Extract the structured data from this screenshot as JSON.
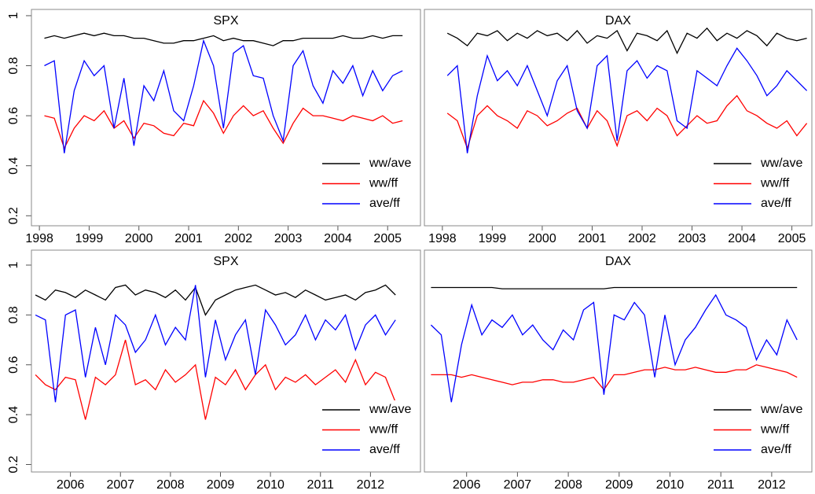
{
  "chart_data": [
    {
      "type": "line",
      "title": "SPX",
      "legend": "bottom-right",
      "xlim": [
        1997.84,
        2005.66
      ],
      "ylim": [
        0.16,
        1.025
      ],
      "xticks": [
        1998,
        1999,
        2000,
        2001,
        2002,
        2003,
        2004,
        2005
      ],
      "yticks": [
        0.2,
        0.4,
        0.6,
        0.8,
        1.0
      ],
      "x": [
        1998.1,
        1998.3,
        1998.5,
        1998.7,
        1998.9,
        1999.1,
        1999.3,
        1999.5,
        1999.7,
        1999.9,
        2000.1,
        2000.3,
        2000.5,
        2000.7,
        2000.9,
        2001.1,
        2001.3,
        2001.5,
        2001.7,
        2001.9,
        2002.1,
        2002.3,
        2002.5,
        2002.7,
        2002.9,
        2003.1,
        2003.3,
        2003.5,
        2003.7,
        2003.9,
        2004.1,
        2004.3,
        2004.5,
        2004.7,
        2004.9,
        2005.1,
        2005.3
      ],
      "series": [
        {
          "name": "ww/ave",
          "color": "#000000",
          "values": [
            0.91,
            0.92,
            0.91,
            0.92,
            0.93,
            0.92,
            0.93,
            0.92,
            0.92,
            0.91,
            0.91,
            0.9,
            0.89,
            0.89,
            0.9,
            0.9,
            0.91,
            0.92,
            0.9,
            0.91,
            0.9,
            0.9,
            0.89,
            0.88,
            0.9,
            0.9,
            0.91,
            0.91,
            0.91,
            0.91,
            0.92,
            0.91,
            0.91,
            0.92,
            0.91,
            0.92,
            0.92
          ]
        },
        {
          "name": "ww/ff",
          "color": "#ff0000",
          "values": [
            0.6,
            0.59,
            0.47,
            0.55,
            0.6,
            0.58,
            0.62,
            0.55,
            0.58,
            0.51,
            0.57,
            0.56,
            0.53,
            0.52,
            0.57,
            0.56,
            0.66,
            0.61,
            0.53,
            0.6,
            0.64,
            0.6,
            0.62,
            0.55,
            0.49,
            0.57,
            0.63,
            0.6,
            0.6,
            0.59,
            0.58,
            0.6,
            0.59,
            0.58,
            0.6,
            0.57,
            0.58
          ]
        },
        {
          "name": "ave/ff",
          "color": "#0000ff",
          "values": [
            0.8,
            0.82,
            0.45,
            0.7,
            0.82,
            0.76,
            0.8,
            0.55,
            0.75,
            0.48,
            0.72,
            0.66,
            0.78,
            0.62,
            0.58,
            0.72,
            0.9,
            0.8,
            0.55,
            0.85,
            0.88,
            0.76,
            0.75,
            0.6,
            0.5,
            0.8,
            0.86,
            0.72,
            0.65,
            0.78,
            0.73,
            0.8,
            0.68,
            0.78,
            0.7,
            0.76,
            0.78
          ]
        }
      ]
    },
    {
      "type": "line",
      "title": "DAX",
      "legend": "bottom-right",
      "xlim": [
        1997.64,
        2005.4
      ],
      "ylim": [
        0.16,
        1.025
      ],
      "xticks": [
        1998,
        1999,
        2000,
        2001,
        2002,
        2003,
        2004,
        2005
      ],
      "x": [
        1998.1,
        1998.3,
        1998.5,
        1998.7,
        1998.9,
        1999.1,
        1999.3,
        1999.5,
        1999.7,
        1999.9,
        2000.1,
        2000.3,
        2000.5,
        2000.7,
        2000.9,
        2001.1,
        2001.3,
        2001.5,
        2001.7,
        2001.9,
        2002.1,
        2002.3,
        2002.5,
        2002.7,
        2002.9,
        2003.1,
        2003.3,
        2003.5,
        2003.7,
        2003.9,
        2004.1,
        2004.3,
        2004.5,
        2004.7,
        2004.9,
        2005.1,
        2005.3
      ],
      "series": [
        {
          "name": "ww/ave",
          "color": "#000000",
          "values": [
            0.93,
            0.91,
            0.88,
            0.93,
            0.92,
            0.94,
            0.9,
            0.93,
            0.91,
            0.94,
            0.92,
            0.93,
            0.9,
            0.94,
            0.89,
            0.92,
            0.91,
            0.94,
            0.86,
            0.93,
            0.92,
            0.9,
            0.94,
            0.85,
            0.93,
            0.91,
            0.95,
            0.9,
            0.93,
            0.91,
            0.94,
            0.92,
            0.88,
            0.93,
            0.91,
            0.9,
            0.91
          ]
        },
        {
          "name": "ww/ff",
          "color": "#ff0000",
          "values": [
            0.61,
            0.58,
            0.47,
            0.6,
            0.64,
            0.6,
            0.58,
            0.55,
            0.62,
            0.6,
            0.56,
            0.58,
            0.61,
            0.63,
            0.55,
            0.62,
            0.58,
            0.48,
            0.6,
            0.62,
            0.58,
            0.63,
            0.6,
            0.52,
            0.56,
            0.6,
            0.57,
            0.58,
            0.64,
            0.68,
            0.62,
            0.6,
            0.57,
            0.55,
            0.58,
            0.52,
            0.57
          ]
        },
        {
          "name": "ave/ff",
          "color": "#0000ff",
          "values": [
            0.76,
            0.8,
            0.45,
            0.68,
            0.84,
            0.74,
            0.78,
            0.72,
            0.8,
            0.7,
            0.6,
            0.74,
            0.8,
            0.62,
            0.55,
            0.8,
            0.84,
            0.5,
            0.78,
            0.82,
            0.75,
            0.8,
            0.78,
            0.58,
            0.55,
            0.78,
            0.75,
            0.72,
            0.8,
            0.87,
            0.82,
            0.76,
            0.68,
            0.72,
            0.78,
            0.74,
            0.7
          ]
        }
      ]
    },
    {
      "type": "line",
      "title": "SPX",
      "legend": "bottom-right",
      "xlim": [
        2005.22,
        2013.0
      ],
      "ylim": [
        0.17,
        1.06
      ],
      "xticks": [
        2006,
        2007,
        2008,
        2009,
        2010,
        2011,
        2012
      ],
      "yticks": [
        0.2,
        0.4,
        0.6,
        0.8,
        1.0
      ],
      "x": [
        2005.3,
        2005.5,
        2005.7,
        2005.9,
        2006.1,
        2006.3,
        2006.5,
        2006.7,
        2006.9,
        2007.1,
        2007.3,
        2007.5,
        2007.7,
        2007.9,
        2008.1,
        2008.3,
        2008.5,
        2008.7,
        2008.9,
        2009.1,
        2009.3,
        2009.5,
        2009.7,
        2009.9,
        2010.1,
        2010.3,
        2010.5,
        2010.7,
        2010.9,
        2011.1,
        2011.3,
        2011.5,
        2011.7,
        2011.9,
        2012.1,
        2012.3,
        2012.5
      ],
      "series": [
        {
          "name": "ww/ave",
          "color": "#000000",
          "values": [
            0.88,
            0.86,
            0.9,
            0.89,
            0.87,
            0.9,
            0.88,
            0.86,
            0.91,
            0.92,
            0.88,
            0.9,
            0.89,
            0.87,
            0.9,
            0.86,
            0.91,
            0.8,
            0.86,
            0.88,
            0.9,
            0.91,
            0.92,
            0.9,
            0.88,
            0.89,
            0.87,
            0.9,
            0.88,
            0.86,
            0.87,
            0.88,
            0.86,
            0.89,
            0.9,
            0.92,
            0.88
          ]
        },
        {
          "name": "ww/ff",
          "color": "#ff0000",
          "values": [
            0.56,
            0.52,
            0.5,
            0.55,
            0.54,
            0.38,
            0.55,
            0.52,
            0.56,
            0.7,
            0.52,
            0.54,
            0.5,
            0.58,
            0.53,
            0.56,
            0.6,
            0.38,
            0.55,
            0.52,
            0.58,
            0.5,
            0.56,
            0.6,
            0.5,
            0.55,
            0.53,
            0.56,
            0.52,
            0.55,
            0.58,
            0.53,
            0.62,
            0.52,
            0.57,
            0.55,
            0.45
          ]
        },
        {
          "name": "ave/ff",
          "color": "#0000ff",
          "values": [
            0.8,
            0.78,
            0.45,
            0.8,
            0.82,
            0.55,
            0.75,
            0.6,
            0.8,
            0.76,
            0.65,
            0.7,
            0.8,
            0.68,
            0.75,
            0.7,
            0.92,
            0.55,
            0.78,
            0.62,
            0.72,
            0.78,
            0.56,
            0.82,
            0.76,
            0.68,
            0.72,
            0.8,
            0.7,
            0.78,
            0.74,
            0.8,
            0.66,
            0.76,
            0.8,
            0.72,
            0.78
          ]
        }
      ]
    },
    {
      "type": "line",
      "title": "DAX",
      "legend": "bottom-right",
      "xlim": [
        2005.17,
        2012.79
      ],
      "ylim": [
        0.17,
        1.06
      ],
      "xticks": [
        2006,
        2007,
        2008,
        2009,
        2010,
        2011,
        2012
      ],
      "x": [
        2005.3,
        2005.5,
        2005.7,
        2005.9,
        2006.1,
        2006.3,
        2006.5,
        2006.7,
        2006.9,
        2007.1,
        2007.3,
        2007.5,
        2007.7,
        2007.9,
        2008.1,
        2008.3,
        2008.5,
        2008.7,
        2008.9,
        2009.1,
        2009.3,
        2009.5,
        2009.7,
        2009.9,
        2010.1,
        2010.3,
        2010.5,
        2010.7,
        2010.9,
        2011.1,
        2011.3,
        2011.5,
        2011.7,
        2011.9,
        2012.1,
        2012.3,
        2012.5
      ],
      "series": [
        {
          "name": "ww/ave",
          "color": "#000000",
          "values": [
            0.91,
            0.91,
            0.91,
            0.91,
            0.91,
            0.91,
            0.91,
            0.905,
            0.905,
            0.905,
            0.905,
            0.905,
            0.905,
            0.905,
            0.905,
            0.905,
            0.905,
            0.905,
            0.91,
            0.91,
            0.91,
            0.91,
            0.91,
            0.91,
            0.91,
            0.91,
            0.91,
            0.91,
            0.91,
            0.91,
            0.91,
            0.91,
            0.91,
            0.91,
            0.91,
            0.91,
            0.91
          ]
        },
        {
          "name": "ww/ff",
          "color": "#ff0000",
          "values": [
            0.56,
            0.56,
            0.56,
            0.55,
            0.56,
            0.55,
            0.54,
            0.53,
            0.52,
            0.53,
            0.53,
            0.54,
            0.54,
            0.53,
            0.53,
            0.54,
            0.55,
            0.5,
            0.56,
            0.56,
            0.57,
            0.58,
            0.58,
            0.59,
            0.58,
            0.58,
            0.59,
            0.58,
            0.57,
            0.57,
            0.58,
            0.58,
            0.6,
            0.59,
            0.58,
            0.57,
            0.55
          ]
        },
        {
          "name": "ave/ff",
          "color": "#0000ff",
          "values": [
            0.76,
            0.72,
            0.45,
            0.68,
            0.84,
            0.72,
            0.78,
            0.75,
            0.8,
            0.72,
            0.76,
            0.7,
            0.66,
            0.74,
            0.7,
            0.82,
            0.85,
            0.48,
            0.8,
            0.78,
            0.85,
            0.8,
            0.55,
            0.8,
            0.6,
            0.7,
            0.75,
            0.82,
            0.88,
            0.8,
            0.78,
            0.75,
            0.62,
            0.7,
            0.64,
            0.78,
            0.7
          ]
        }
      ]
    }
  ]
}
